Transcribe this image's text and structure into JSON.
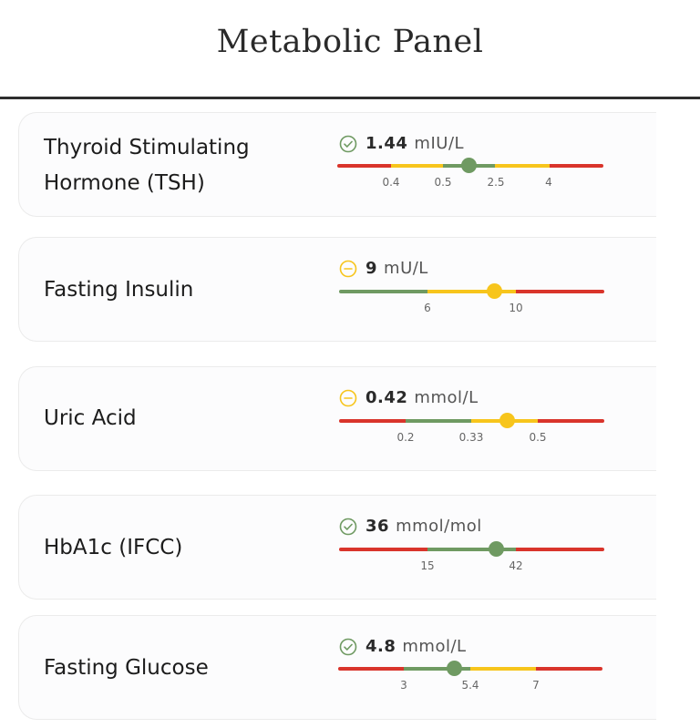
{
  "title": "Metabolic Panel",
  "colors": {
    "red": "#d9342b",
    "yellow": "#f7c51c",
    "green": "#6f9a62",
    "check": "#6f9a62",
    "warn": "#f7c51c"
  },
  "markers": [
    {
      "name_line1": "Thyroid Stimulating",
      "name_line2": "Hormone (TSH)",
      "status": "check-icon",
      "value": "1.44",
      "unit": "mIU/L",
      "value_num": 1.44,
      "marker_color": "green",
      "ticks": [
        "0.4",
        "0.5",
        "2.5",
        "4"
      ],
      "segments": [
        {
          "color": "red"
        },
        {
          "color": "yellow"
        },
        {
          "color": "green"
        },
        {
          "color": "yellow"
        },
        {
          "color": "red"
        }
      ]
    },
    {
      "name_line1": "Fasting Insulin",
      "name_line2": "",
      "status": "minus-circle-icon",
      "value": "9",
      "unit": "mU/L",
      "value_num": 9,
      "marker_color": "yellow",
      "ticks": [
        "6",
        "10"
      ],
      "segments": [
        {
          "color": "green"
        },
        {
          "color": "yellow"
        },
        {
          "color": "red"
        }
      ]
    },
    {
      "name_line1": "Uric Acid",
      "name_line2": "",
      "status": "minus-circle-icon",
      "value": "0.42",
      "unit": "mmol/L",
      "value_num": 0.42,
      "marker_color": "yellow",
      "ticks": [
        "0.2",
        "0.33",
        "0.5"
      ],
      "segments": [
        {
          "color": "red"
        },
        {
          "color": "green"
        },
        {
          "color": "yellow"
        },
        {
          "color": "red"
        }
      ]
    },
    {
      "name_line1": "HbA1c (IFCC)",
      "name_line2": "",
      "status": "check-icon",
      "value": "36",
      "unit": "mmol/mol",
      "value_num": 36,
      "marker_color": "green",
      "ticks": [
        "15",
        "42"
      ],
      "segments": [
        {
          "color": "red"
        },
        {
          "color": "green"
        },
        {
          "color": "red"
        }
      ]
    },
    {
      "name_line1": "Fasting Glucose",
      "name_line2": "",
      "status": "check-icon",
      "value": "4.8",
      "unit": "mmol/L",
      "value_num": 4.8,
      "marker_color": "green",
      "ticks": [
        "3",
        "5.4",
        "7"
      ],
      "segments": [
        {
          "color": "red"
        },
        {
          "color": "green"
        },
        {
          "color": "yellow"
        },
        {
          "color": "red"
        }
      ]
    }
  ]
}
